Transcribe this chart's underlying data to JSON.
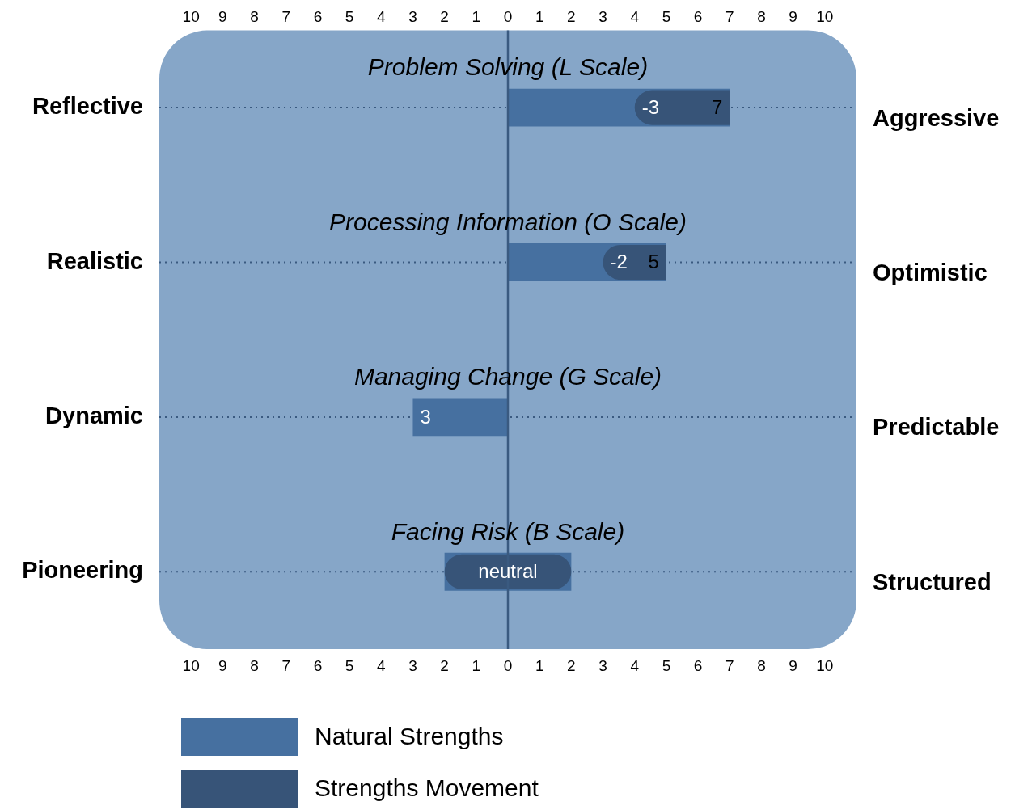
{
  "chart_data": {
    "type": "bar",
    "orientation": "horizontal",
    "categories": [
      "Reflective",
      "Realistic",
      "Dynamic",
      "Pioneering"
    ],
    "y2_categories": [
      "Aggressive",
      "Optimistic",
      "Predictable",
      "Structured"
    ],
    "series": [
      {
        "name": "Natural Strengths",
        "color": "#4670a0",
        "base": [
          0,
          0,
          0,
          -2
        ],
        "values": [
          7,
          5,
          -3,
          4
        ],
        "value_labels": [
          "7",
          "5",
          "3",
          null
        ]
      },
      {
        "name": "Strengths Movement",
        "color": "#375478",
        "base": [
          7,
          5,
          null,
          -2
        ],
        "values": [
          -3,
          -2,
          null,
          4
        ],
        "value_labels": [
          "-3",
          "-2",
          null,
          "neutral"
        ]
      }
    ],
    "xlim": [
      -11,
      11
    ],
    "xticks": [
      {
        "value": -10,
        "label": "10"
      },
      {
        "value": -9,
        "label": "9"
      },
      {
        "value": -8,
        "label": "8"
      },
      {
        "value": -7,
        "label": "7"
      },
      {
        "value": -6,
        "label": "6"
      },
      {
        "value": -5,
        "label": "5"
      },
      {
        "value": -4,
        "label": "4"
      },
      {
        "value": -3,
        "label": "3"
      },
      {
        "value": -2,
        "label": "2"
      },
      {
        "value": -1,
        "label": "1"
      },
      0,
      1,
      2,
      3,
      4,
      5,
      6,
      7,
      8,
      9,
      10
    ],
    "x2lim": [
      -11,
      11
    ],
    "x2ticks": [
      {
        "value": -10,
        "label": "10"
      },
      {
        "value": -9,
        "label": "9"
      },
      {
        "value": -8,
        "label": "8"
      },
      {
        "value": -7,
        "label": "7"
      },
      {
        "value": -6,
        "label": "6"
      },
      {
        "value": -5,
        "label": "5"
      },
      {
        "value": -4,
        "label": "4"
      },
      {
        "value": -3,
        "label": "3"
      },
      {
        "value": -2,
        "label": "2"
      },
      {
        "value": -1,
        "label": "1"
      },
      0,
      1,
      2,
      3,
      4,
      5,
      6,
      7,
      8,
      9,
      10
    ],
    "annotations": [
      "Problem Solving (L Scale)",
      "Processing Information (O Scale)",
      "Managing Change (G Scale)",
      "Facing Risk (B Scale)"
    ],
    "ref_lines": [
      {
        "axis": "x",
        "value": 0,
        "color": "#3a5a80"
      }
    ],
    "grid": "y",
    "line_style": "dotted",
    "legend": "bottom left"
  }
}
